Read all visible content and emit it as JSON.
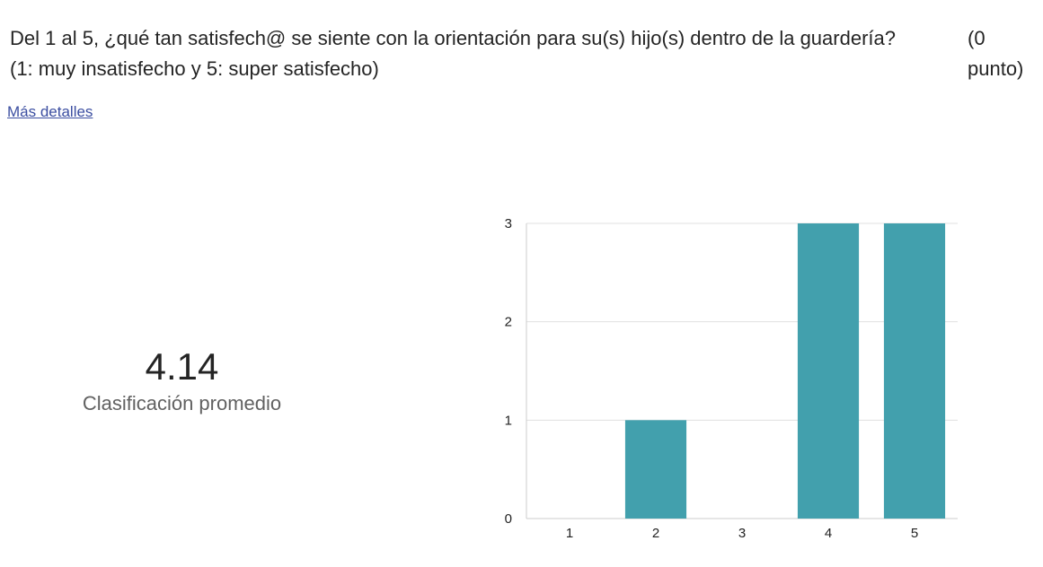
{
  "question": {
    "text": "Del 1 al 5, ¿qué tan satisfech@ se siente con la orientación para su(s) hijo(s) dentro de la guardería? (1: muy insatisfecho y 5: super satisfecho)",
    "points": "(0 punto)"
  },
  "details_link": "Más detalles",
  "summary": {
    "average": "4.14",
    "label": "Clasificación promedio"
  },
  "colors": {
    "bar": "#42a0ad",
    "grid": "#e0e0e0",
    "axis": "#cccccc"
  },
  "chart_data": {
    "type": "bar",
    "title": "",
    "xlabel": "",
    "ylabel": "",
    "categories": [
      "1",
      "2",
      "3",
      "4",
      "5"
    ],
    "values": [
      0,
      1,
      0,
      3,
      3
    ],
    "ylim": [
      0,
      3
    ],
    "yticks": [
      "0",
      "1",
      "2",
      "3"
    ],
    "grid": true
  }
}
